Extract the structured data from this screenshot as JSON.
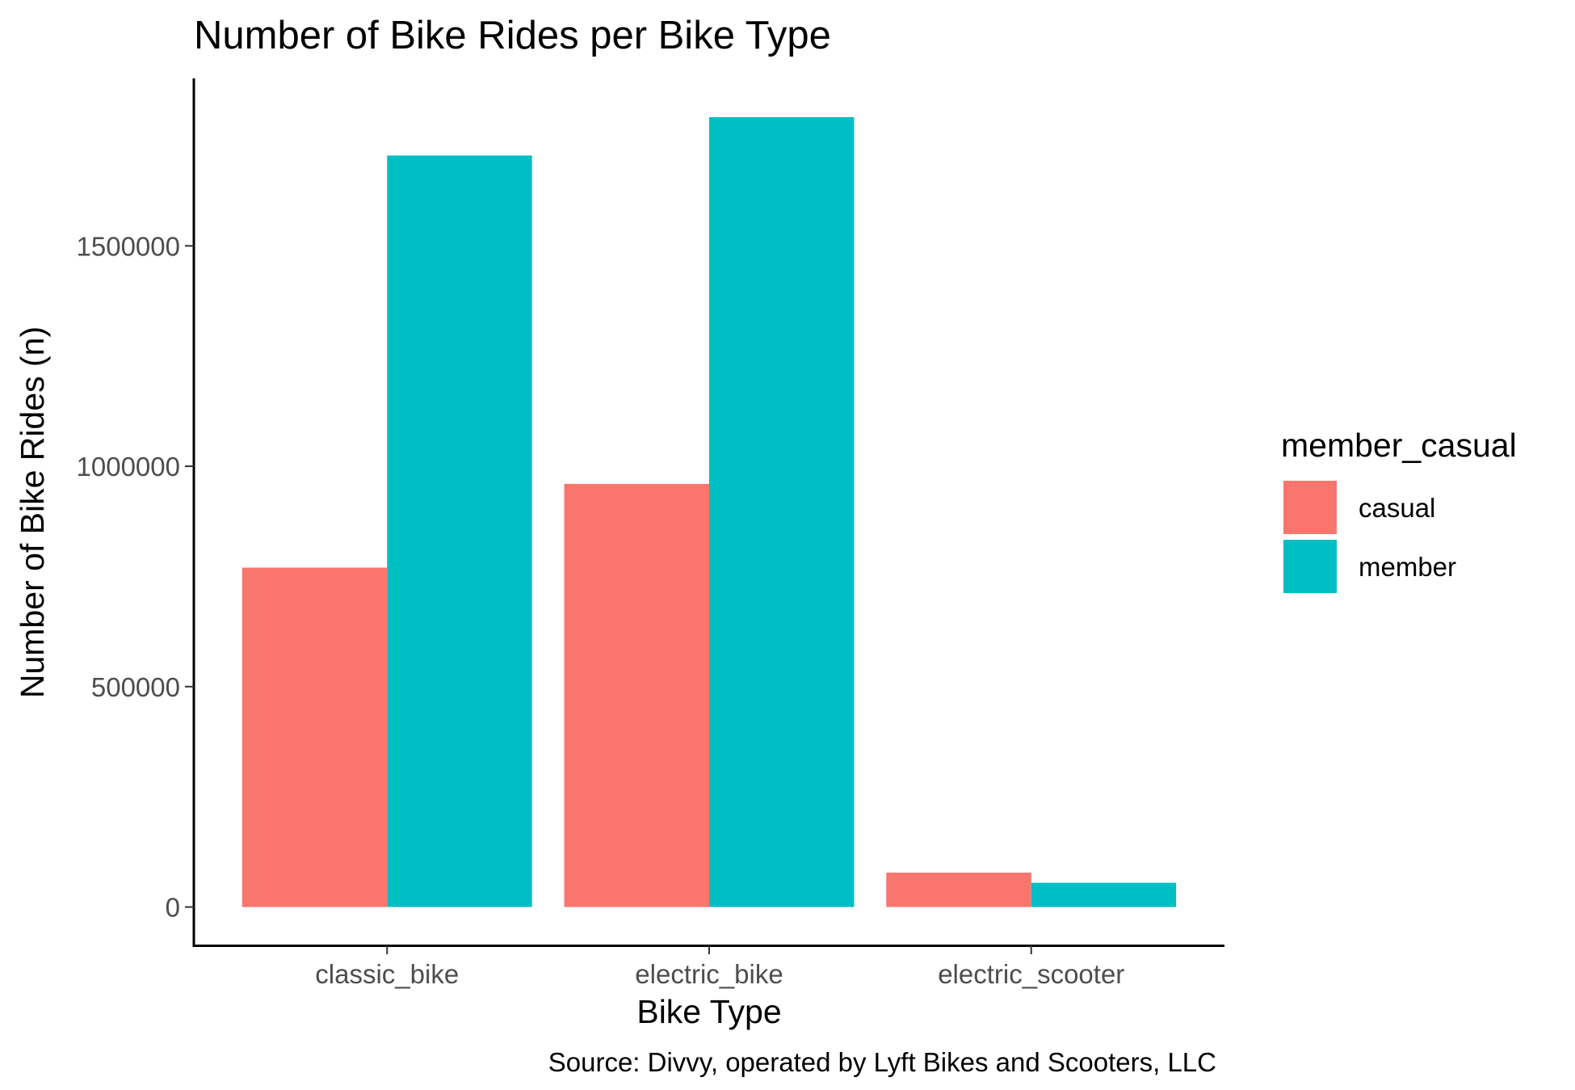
{
  "chart_data": {
    "type": "bar",
    "title": "Number of Bike Rides per Bike Type",
    "xlabel": "Bike Type",
    "ylabel": "Number of Bike Rides (n)",
    "caption": "Source: Divvy, operated by Lyft Bikes and Scooters, LLC",
    "categories": [
      "classic_bike",
      "electric_bike",
      "electric_scooter"
    ],
    "series": [
      {
        "name": "casual",
        "color": "#F8766D",
        "values": [
          770000,
          960000,
          78000
        ]
      },
      {
        "name": "member",
        "color": "#00BFC4",
        "values": [
          1705000,
          1792000,
          55000
        ]
      }
    ],
    "ylim": [
      -87000,
      1880000
    ],
    "yticks": [
      0,
      500000,
      1000000,
      1500000
    ],
    "ytick_labels": [
      "0",
      "500000",
      "1000000",
      "1500000"
    ],
    "legend": {
      "title": "member_casual",
      "position": "right"
    },
    "grid": false
  }
}
